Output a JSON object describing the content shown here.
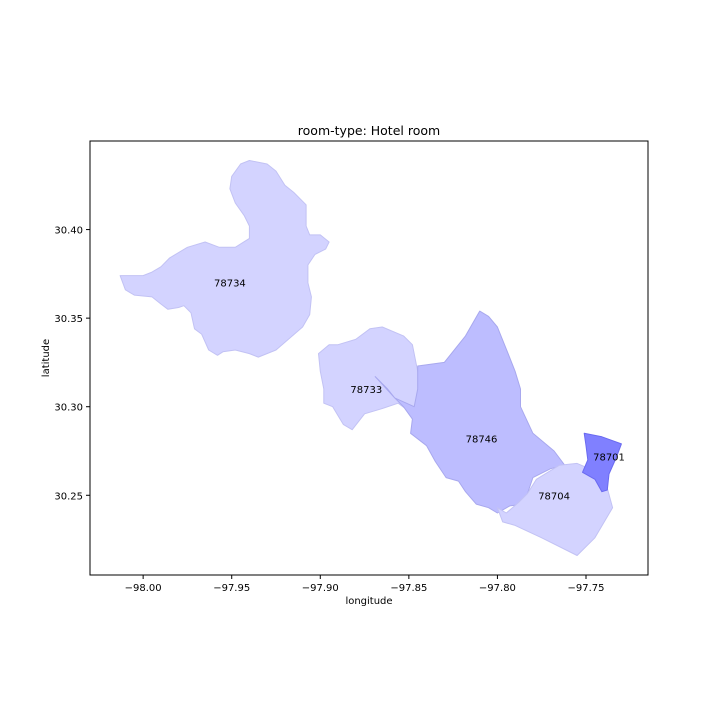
{
  "chart_data": {
    "type": "choropleth-map",
    "title": "room-type: Hotel room",
    "xlabel": "longitude",
    "ylabel": "latitude",
    "xlim": [
      -98.03,
      -97.715
    ],
    "ylim": [
      30.205,
      30.45
    ],
    "xticks": [
      {
        "value": -98.0,
        "label": "−98.00"
      },
      {
        "value": -97.95,
        "label": "−97.95"
      },
      {
        "value": -97.9,
        "label": "−97.90"
      },
      {
        "value": -97.85,
        "label": "−97.85"
      },
      {
        "value": -97.8,
        "label": "−97.80"
      },
      {
        "value": -97.75,
        "label": "−97.75"
      }
    ],
    "yticks": [
      {
        "value": 30.25,
        "label": "30.25"
      },
      {
        "value": 30.3,
        "label": "30.30"
      },
      {
        "value": 30.35,
        "label": "30.35"
      },
      {
        "value": 30.4,
        "label": "30.40"
      }
    ],
    "grid": false,
    "regions": [
      {
        "label": "78734",
        "fill": "#d3d3ff",
        "stroke": "#c2c2f4",
        "label_at": [
          -97.951,
          30.37
        ],
        "boundary": [
          [
            -98.013,
            30.374
          ],
          [
            -98.01,
            30.366
          ],
          [
            -98.005,
            30.363
          ],
          [
            -97.995,
            30.362
          ],
          [
            -97.99,
            30.358
          ],
          [
            -97.986,
            30.355
          ],
          [
            -97.98,
            30.356
          ],
          [
            -97.977,
            30.357
          ],
          [
            -97.973,
            30.353
          ],
          [
            -97.971,
            30.344
          ],
          [
            -97.967,
            30.341
          ],
          [
            -97.963,
            30.332
          ],
          [
            -97.958,
            30.329
          ],
          [
            -97.955,
            30.331
          ],
          [
            -97.948,
            30.332
          ],
          [
            -97.94,
            30.33
          ],
          [
            -97.935,
            30.328
          ],
          [
            -97.925,
            30.332
          ],
          [
            -97.91,
            30.345
          ],
          [
            -97.906,
            30.352
          ],
          [
            -97.905,
            30.362
          ],
          [
            -97.907,
            30.37
          ],
          [
            -97.907,
            30.38
          ],
          [
            -97.903,
            30.386
          ],
          [
            -97.897,
            30.389
          ],
          [
            -97.895,
            30.393
          ],
          [
            -97.9,
            30.397
          ],
          [
            -97.906,
            30.397
          ],
          [
            -97.908,
            30.402
          ],
          [
            -97.908,
            30.414
          ],
          [
            -97.915,
            30.421
          ],
          [
            -97.92,
            30.425
          ],
          [
            -97.925,
            30.433
          ],
          [
            -97.93,
            30.437
          ],
          [
            -97.94,
            30.439
          ],
          [
            -97.945,
            30.437
          ],
          [
            -97.95,
            30.43
          ],
          [
            -97.951,
            30.423
          ],
          [
            -97.948,
            30.415
          ],
          [
            -97.943,
            30.408
          ],
          [
            -97.94,
            30.402
          ],
          [
            -97.94,
            30.395
          ],
          [
            -97.948,
            30.39
          ],
          [
            -97.957,
            30.39
          ],
          [
            -97.965,
            30.393
          ],
          [
            -97.975,
            30.39
          ],
          [
            -97.985,
            30.384
          ],
          [
            -97.99,
            30.379
          ],
          [
            -97.995,
            30.376
          ],
          [
            -98.0,
            30.374
          ]
        ]
      },
      {
        "label": "78733",
        "fill": "#d3d3ff",
        "stroke": "#c2c2f4",
        "label_at": [
          -97.874,
          30.31
        ],
        "boundary": [
          [
            -97.901,
            30.33
          ],
          [
            -97.9,
            30.32
          ],
          [
            -97.898,
            30.31
          ],
          [
            -97.898,
            30.302
          ],
          [
            -97.893,
            30.3
          ],
          [
            -97.89,
            30.295
          ],
          [
            -97.887,
            30.29
          ],
          [
            -97.882,
            30.287
          ],
          [
            -97.875,
            30.296
          ],
          [
            -97.865,
            30.299
          ],
          [
            -97.856,
            30.302
          ],
          [
            -97.848,
            30.296
          ],
          [
            -97.843,
            30.3
          ],
          [
            -97.843,
            30.31
          ],
          [
            -97.845,
            30.32
          ],
          [
            -97.848,
            30.335
          ],
          [
            -97.853,
            30.34
          ],
          [
            -97.865,
            30.345
          ],
          [
            -97.872,
            30.344
          ],
          [
            -97.88,
            30.338
          ],
          [
            -97.89,
            30.335
          ],
          [
            -97.895,
            30.335
          ]
        ]
      },
      {
        "label": "78746",
        "fill": "#bdbdff",
        "stroke": "#a8a8ee",
        "label_at": [
          -97.809,
          30.282
        ],
        "boundary": [
          [
            -97.869,
            30.317
          ],
          [
            -97.862,
            30.31
          ],
          [
            -97.858,
            30.305
          ],
          [
            -97.853,
            30.3
          ],
          [
            -97.848,
            30.293
          ],
          [
            -97.849,
            30.285
          ],
          [
            -97.84,
            30.278
          ],
          [
            -97.835,
            30.269
          ],
          [
            -97.829,
            30.26
          ],
          [
            -97.822,
            30.258
          ],
          [
            -97.818,
            30.252
          ],
          [
            -97.812,
            30.245
          ],
          [
            -97.805,
            30.243
          ],
          [
            -97.8,
            30.24
          ],
          [
            -97.793,
            30.244
          ],
          [
            -97.785,
            30.245
          ],
          [
            -97.783,
            30.251
          ],
          [
            -97.78,
            30.26
          ],
          [
            -97.77,
            30.265
          ],
          [
            -97.762,
            30.267
          ],
          [
            -97.768,
            30.275
          ],
          [
            -97.78,
            30.285
          ],
          [
            -97.787,
            30.3
          ],
          [
            -97.787,
            30.31
          ],
          [
            -97.79,
            30.32
          ],
          [
            -97.794,
            30.33
          ],
          [
            -97.8,
            30.345
          ],
          [
            -97.805,
            30.351
          ],
          [
            -97.81,
            30.354
          ],
          [
            -97.818,
            30.34
          ],
          [
            -97.83,
            30.325
          ],
          [
            -97.845,
            30.323
          ],
          [
            -97.845,
            30.31
          ],
          [
            -97.847,
            30.3
          ],
          [
            -97.858,
            30.305
          ]
        ]
      },
      {
        "label": "78704",
        "fill": "#d3d3ff",
        "stroke": "#c2c2f4",
        "label_at": [
          -97.768,
          30.25
        ],
        "boundary": [
          [
            -97.8,
            30.243
          ],
          [
            -97.797,
            30.235
          ],
          [
            -97.79,
            30.233
          ],
          [
            -97.775,
            30.226
          ],
          [
            -97.755,
            30.216
          ],
          [
            -97.745,
            30.226
          ],
          [
            -97.735,
            30.243
          ],
          [
            -97.738,
            30.254
          ],
          [
            -97.748,
            30.265
          ],
          [
            -97.755,
            30.268
          ],
          [
            -97.765,
            30.267
          ],
          [
            -97.778,
            30.259
          ],
          [
            -97.783,
            30.251
          ],
          [
            -97.788,
            30.246
          ],
          [
            -97.795,
            30.24
          ]
        ]
      },
      {
        "label": "78701",
        "fill": "#8080ff",
        "stroke": "#6a6af0",
        "label_at": [
          -97.737,
          30.272
        ],
        "boundary": [
          [
            -97.751,
            30.285
          ],
          [
            -97.75,
            30.278
          ],
          [
            -97.749,
            30.27
          ],
          [
            -97.752,
            30.263
          ],
          [
            -97.745,
            30.259
          ],
          [
            -97.741,
            30.252
          ],
          [
            -97.738,
            30.253
          ],
          [
            -97.737,
            30.262
          ],
          [
            -97.733,
            30.271
          ],
          [
            -97.73,
            30.279
          ],
          [
            -97.741,
            30.283
          ]
        ]
      }
    ]
  }
}
